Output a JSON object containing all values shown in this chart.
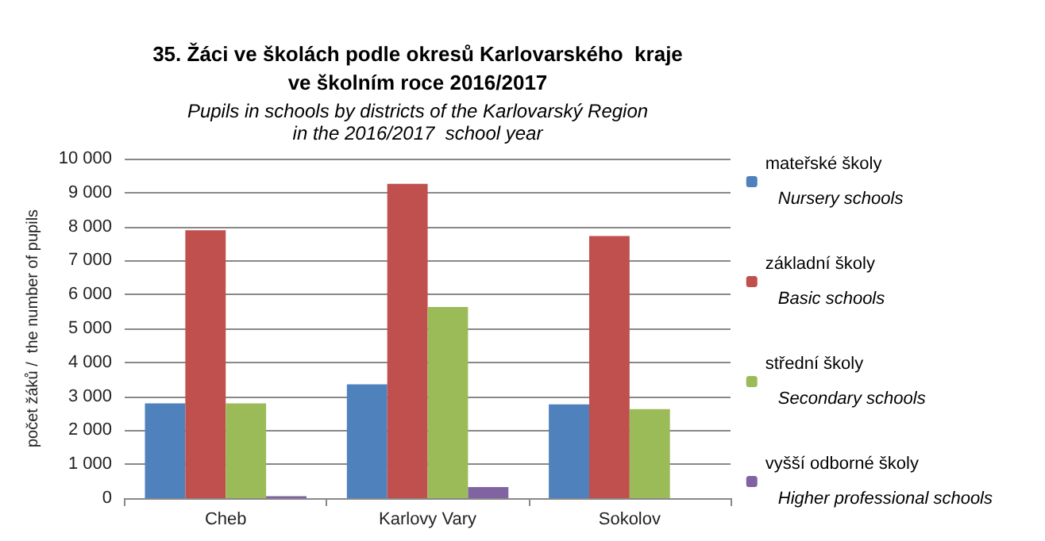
{
  "chart_data": {
    "type": "bar",
    "title": "35. Žáci ve školách podle okresů Karlovarského  kraje\nve školním roce 2016/2017",
    "subtitle": "Pupils in schools by districts of the Karlovarský Region\nin the 2016/2017  school year",
    "ylabel": "počet žáků /  the number of pupils",
    "categories": [
      "Cheb",
      "Karlovy Vary",
      "Sokolov"
    ],
    "series": [
      {
        "name": "mateřské školy\nNursery schools",
        "color": "#4f81bd",
        "values": [
          2790,
          3350,
          2760
        ]
      },
      {
        "name": "základní školy\nBasic schools",
        "color": "#c0504d",
        "values": [
          7890,
          9260,
          7720
        ]
      },
      {
        "name": "střední školy\nSecondary schools",
        "color": "#9bbb59",
        "values": [
          2790,
          5630,
          2620
        ]
      },
      {
        "name": "vyšší odborné školy\nHigher professional schools",
        "color": "#8064a2",
        "values": [
          60,
          330,
          0
        ]
      }
    ],
    "ylim": [
      0,
      10000
    ],
    "yticks": [
      0,
      {
        "value": 1000,
        "label": "1 000"
      },
      {
        "value": 2000,
        "label": "2 000"
      },
      {
        "value": 3000,
        "label": "3 000"
      },
      {
        "value": 4000,
        "label": "4 000"
      },
      {
        "value": 5000,
        "label": "5 000"
      },
      {
        "value": 6000,
        "label": "6 000"
      },
      {
        "value": 7000,
        "label": "7 000"
      },
      {
        "value": 8000,
        "label": "8 000"
      },
      {
        "value": 9000,
        "label": "9 000"
      },
      {
        "value": 10000,
        "label": "10 000"
      }
    ],
    "grid": "y",
    "legend": "right"
  }
}
